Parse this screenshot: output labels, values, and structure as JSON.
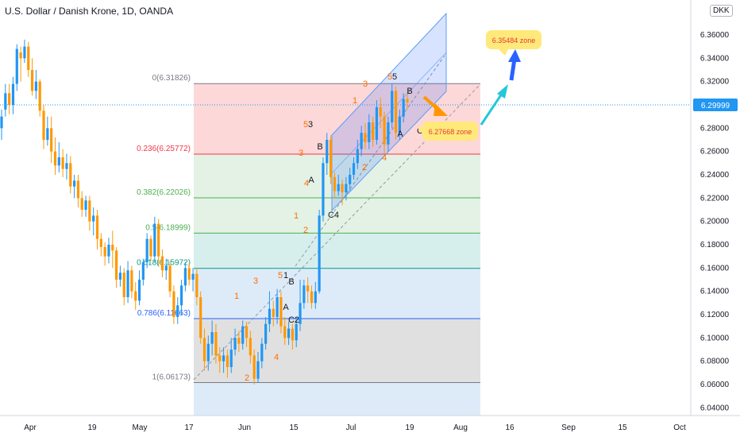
{
  "header": {
    "title": "U.S. Dollar / Danish Krone, 1D, OANDA",
    "currency": "DKK"
  },
  "chart_data": {
    "type": "candlestick",
    "title": "U.S. Dollar / Danish Krone, 1D, OANDA",
    "ylim": [
      6.03,
      6.38
    ],
    "y_ticks": [
      "6.36000",
      "6.34000",
      "6.32000",
      "6.30000",
      "6.28000",
      "6.26000",
      "6.24000",
      "6.22000",
      "6.20000",
      "6.18000",
      "6.16000",
      "6.14000",
      "6.12000",
      "6.10000",
      "6.08000",
      "6.06000",
      "6.04000"
    ],
    "x_ticks": [
      "Apr",
      "19",
      "May",
      "17",
      "Jun",
      "15",
      "Jul",
      "19",
      "Aug",
      "16",
      "Sep",
      "15",
      "Oct"
    ],
    "current_price": "6.29999",
    "colors": {
      "up": "#2196f3",
      "down": "#ff9800",
      "price_line": "#2196f3"
    },
    "fibonacci": [
      {
        "label": "0(6.31826)",
        "value": 6.31826,
        "color": "#787b86",
        "fill": "#fdd8d8"
      },
      {
        "label": "0.236(6.25772)",
        "value": 6.25772,
        "color": "#f23645",
        "fill": "#e3f2e5"
      },
      {
        "label": "0.382(6.22026)",
        "value": 6.22026,
        "color": "#4caf50",
        "fill": "#e3f2e5"
      },
      {
        "label": "0.5(6.18999)",
        "value": 6.18999,
        "color": "#4caf50",
        "fill": "#d6efec"
      },
      {
        "label": "0.618(6.15972)",
        "value": 6.15972,
        "color": "#089981",
        "fill": "#ddebf9"
      },
      {
        "label": "0.786(6.11663)",
        "value": 6.11663,
        "color": "#2962ff",
        "fill": "#e0e0e0"
      },
      {
        "label": "1(6.06173)",
        "value": 6.06173,
        "color": "#787b86",
        "fill": null
      }
    ],
    "annotations": [
      {
        "text": "6.35484 zone",
        "value": 6.35484
      },
      {
        "text": "6.27668 zone",
        "value": 6.27668
      }
    ],
    "wave_labels": [
      "1",
      "2",
      "3",
      "4",
      "5",
      "A",
      "B",
      "C2",
      "1",
      "2",
      "3",
      "4",
      "5",
      "A",
      "B",
      "C4",
      "1",
      "2",
      "3",
      "4",
      "5",
      "A",
      "B",
      "C"
    ],
    "candles": [
      [
        6.28,
        6.29,
        6.27,
        6.296
      ],
      [
        6.296,
        6.31,
        6.29,
        6.318
      ],
      [
        6.31,
        6.3,
        6.292,
        6.318
      ],
      [
        6.3,
        6.318,
        6.292,
        6.324
      ],
      [
        6.318,
        6.348,
        6.312,
        6.352
      ],
      [
        6.345,
        6.34,
        6.32,
        6.35
      ],
      [
        6.34,
        6.35,
        6.336,
        6.356
      ],
      [
        6.35,
        6.33,
        6.324,
        6.354
      ],
      [
        6.33,
        6.312,
        6.308,
        6.34
      ],
      [
        6.312,
        6.32,
        6.305,
        6.33
      ],
      [
        6.32,
        6.295,
        6.29,
        6.322
      ],
      [
        6.295,
        6.27,
        6.262,
        6.3
      ],
      [
        6.27,
        6.28,
        6.265,
        6.29
      ],
      [
        6.28,
        6.26,
        6.25,
        6.29
      ],
      [
        6.26,
        6.248,
        6.24,
        6.272
      ],
      [
        6.248,
        6.255,
        6.242,
        6.268
      ],
      [
        6.255,
        6.245,
        6.238,
        6.262
      ],
      [
        6.245,
        6.25,
        6.236,
        6.258
      ],
      [
        6.25,
        6.23,
        6.224,
        6.256
      ],
      [
        6.23,
        6.235,
        6.22,
        6.24
      ],
      [
        6.235,
        6.22,
        6.212,
        6.24
      ],
      [
        6.22,
        6.21,
        6.204,
        6.226
      ],
      [
        6.21,
        6.218,
        6.204,
        6.222
      ],
      [
        6.218,
        6.2,
        6.192,
        6.222
      ],
      [
        6.2,
        6.205,
        6.188,
        6.212
      ],
      [
        6.205,
        6.185,
        6.176,
        6.21
      ],
      [
        6.185,
        6.178,
        6.17,
        6.19
      ],
      [
        6.178,
        6.17,
        6.162,
        6.182
      ],
      [
        6.17,
        6.18,
        6.164,
        6.186
      ],
      [
        6.18,
        6.175,
        6.16,
        6.192
      ],
      [
        6.175,
        6.15,
        6.143,
        6.178
      ],
      [
        6.15,
        6.156,
        6.144,
        6.162
      ],
      [
        6.156,
        6.135,
        6.128,
        6.16
      ],
      [
        6.135,
        6.158,
        6.13,
        6.166
      ],
      [
        6.158,
        6.14,
        6.134,
        6.162
      ],
      [
        6.14,
        6.132,
        6.124,
        6.148
      ],
      [
        6.132,
        6.15,
        6.128,
        6.158
      ],
      [
        6.15,
        6.165,
        6.145,
        6.168
      ],
      [
        6.165,
        6.185,
        6.16,
        6.19
      ],
      [
        6.185,
        6.17,
        6.166,
        6.188
      ],
      [
        6.17,
        6.198,
        6.165,
        6.204
      ],
      [
        6.198,
        6.17,
        6.162,
        6.202
      ],
      [
        6.17,
        6.158,
        6.152,
        6.176
      ],
      [
        6.158,
        6.162,
        6.15,
        6.168
      ],
      [
        6.162,
        6.14,
        6.135,
        6.166
      ],
      [
        6.14,
        6.118,
        6.112,
        6.145
      ],
      [
        6.118,
        6.128,
        6.112,
        6.135
      ],
      [
        6.128,
        6.145,
        6.12,
        6.15
      ],
      [
        6.145,
        6.16,
        6.14,
        6.165
      ],
      [
        6.16,
        6.15,
        6.145,
        6.164
      ],
      [
        6.15,
        6.155,
        6.14,
        6.16
      ],
      [
        6.155,
        6.135,
        6.128,
        6.16
      ],
      [
        6.135,
        6.1,
        6.095,
        6.14
      ],
      [
        6.1,
        6.08,
        6.072,
        6.108
      ],
      [
        6.08,
        6.095,
        6.072,
        6.102
      ],
      [
        6.095,
        6.105,
        6.085,
        6.115
      ],
      [
        6.105,
        6.085,
        6.078,
        6.112
      ],
      [
        6.085,
        6.08,
        6.07,
        6.092
      ],
      [
        6.08,
        6.085,
        6.07,
        6.092
      ],
      [
        6.085,
        6.075,
        6.066,
        6.09
      ],
      [
        6.075,
        6.09,
        6.07,
        6.1
      ],
      [
        6.09,
        6.1,
        6.085,
        6.108
      ],
      [
        6.1,
        6.095,
        6.088,
        6.106
      ],
      [
        6.095,
        6.11,
        6.09,
        6.115
      ],
      [
        6.11,
        6.1,
        6.092,
        6.114
      ],
      [
        6.1,
        6.085,
        6.078,
        6.106
      ],
      [
        6.085,
        6.065,
        6.06,
        6.09
      ],
      [
        6.065,
        6.08,
        6.062,
        6.088
      ],
      [
        6.08,
        6.095,
        6.074,
        6.1
      ],
      [
        6.095,
        6.112,
        6.09,
        6.118
      ],
      [
        6.112,
        6.125,
        6.105,
        6.14
      ],
      [
        6.125,
        6.118,
        6.11,
        6.132
      ],
      [
        6.118,
        6.135,
        6.112,
        6.142
      ],
      [
        6.135,
        6.11,
        6.104,
        6.14
      ],
      [
        6.11,
        6.1,
        6.094,
        6.118
      ],
      [
        6.1,
        6.108,
        6.094,
        6.114
      ],
      [
        6.108,
        6.098,
        6.09,
        6.112
      ],
      [
        6.098,
        6.112,
        6.092,
        6.118
      ],
      [
        6.112,
        6.13,
        6.106,
        6.15
      ],
      [
        6.13,
        6.145,
        6.125,
        6.15
      ],
      [
        6.145,
        6.14,
        6.13,
        6.152
      ],
      [
        6.14,
        6.13,
        6.125,
        6.145
      ],
      [
        6.13,
        6.14,
        6.125,
        6.148
      ],
      [
        6.14,
        6.205,
        6.138,
        6.21
      ],
      [
        6.205,
        6.25,
        6.2,
        6.255
      ],
      [
        6.25,
        6.27,
        6.24,
        6.276
      ],
      [
        6.27,
        6.238,
        6.232,
        6.274
      ],
      [
        6.238,
        6.226,
        6.22,
        6.242
      ],
      [
        6.226,
        6.232,
        6.222,
        6.24
      ],
      [
        6.232,
        6.225,
        6.214,
        6.236
      ],
      [
        6.225,
        6.232,
        6.218,
        6.238
      ],
      [
        6.232,
        6.24,
        6.226,
        6.246
      ],
      [
        6.24,
        6.25,
        6.236,
        6.255
      ],
      [
        6.25,
        6.262,
        6.245,
        6.27
      ],
      [
        6.262,
        6.276,
        6.256,
        6.282
      ],
      [
        6.276,
        6.268,
        6.262,
        6.284
      ],
      [
        6.268,
        6.285,
        6.262,
        6.292
      ],
      [
        6.285,
        6.27,
        6.264,
        6.29
      ],
      [
        6.27,
        6.298,
        6.266,
        6.304
      ],
      [
        6.298,
        6.29,
        6.28,
        6.306
      ],
      [
        6.29,
        6.266,
        6.258,
        6.294
      ],
      [
        6.266,
        6.285,
        6.26,
        6.29
      ],
      [
        6.285,
        6.312,
        6.28,
        6.318
      ],
      [
        6.312,
        6.276,
        6.27,
        6.316
      ],
      [
        6.276,
        6.29,
        6.27,
        6.296
      ],
      [
        6.29,
        6.305,
        6.285,
        6.31
      ],
      [
        6.305,
        6.302,
        6.296,
        6.31
      ]
    ]
  }
}
